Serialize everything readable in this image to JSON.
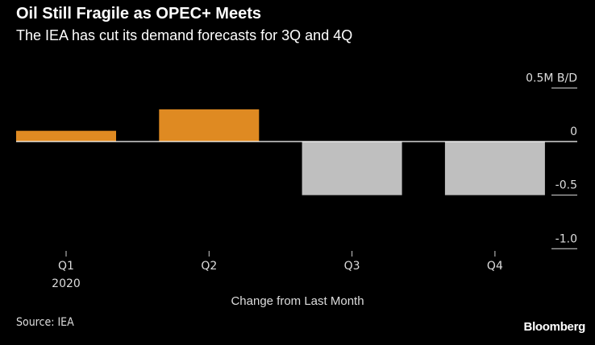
{
  "title": "Oil Still Fragile as OPEC+ Meets",
  "subtitle": "The IEA has cut its demand forecasts for 3Q and 4Q",
  "source": "Source: IEA",
  "logo": "Bloomberg",
  "chart_data": {
    "type": "bar",
    "categories": [
      "Q1",
      "Q2",
      "Q3",
      "Q4"
    ],
    "category_sublabels": [
      "2020",
      "",
      "",
      ""
    ],
    "values": [
      0.1,
      0.3,
      -0.5,
      -0.5
    ],
    "xlabel": "Change from Last Month",
    "ylabel": "M B/D",
    "ylim": [
      -1.0,
      0.5
    ],
    "yticks": [
      0.5,
      0,
      -0.5,
      -1.0
    ],
    "ytick_labels": [
      "0.5M B/D",
      "0",
      "-0.5",
      "-1.0"
    ],
    "colors": {
      "positive": "#df8a22",
      "negative": "#bfbfbf",
      "zero_line": "#ffffff"
    },
    "grid": false
  }
}
